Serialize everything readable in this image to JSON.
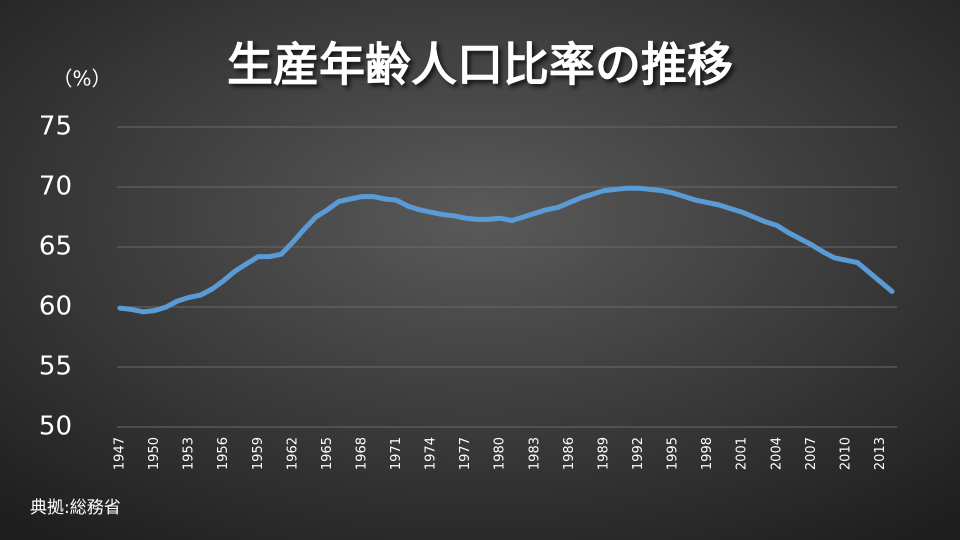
{
  "chart_data": {
    "type": "line",
    "title": "生産年齢人口比率の推移",
    "y_label": "（%）",
    "source": "典拠:総務省",
    "x": [
      1947,
      1948,
      1949,
      1950,
      1951,
      1952,
      1953,
      1954,
      1955,
      1956,
      1957,
      1958,
      1959,
      1960,
      1961,
      1962,
      1963,
      1964,
      1965,
      1966,
      1967,
      1968,
      1969,
      1970,
      1971,
      1972,
      1973,
      1974,
      1975,
      1976,
      1977,
      1978,
      1979,
      1980,
      1981,
      1982,
      1983,
      1984,
      1985,
      1986,
      1987,
      1988,
      1989,
      1990,
      1991,
      1992,
      1993,
      1994,
      1995,
      1996,
      1997,
      1998,
      1999,
      2000,
      2001,
      2002,
      2003,
      2004,
      2005,
      2006,
      2007,
      2008,
      2009,
      2010,
      2011,
      2012,
      2013,
      2014
    ],
    "values": [
      59.9,
      59.8,
      59.6,
      59.7,
      60.0,
      60.5,
      60.8,
      61.0,
      61.5,
      62.2,
      63.0,
      63.6,
      64.2,
      64.2,
      64.4,
      65.4,
      66.5,
      67.5,
      68.1,
      68.8,
      69.0,
      69.2,
      69.2,
      69.0,
      68.9,
      68.4,
      68.1,
      67.9,
      67.7,
      67.6,
      67.4,
      67.3,
      67.3,
      67.4,
      67.2,
      67.5,
      67.8,
      68.1,
      68.3,
      68.7,
      69.1,
      69.4,
      69.7,
      69.8,
      69.9,
      69.9,
      69.8,
      69.7,
      69.5,
      69.2,
      68.9,
      68.7,
      68.5,
      68.2,
      67.9,
      67.5,
      67.1,
      66.8,
      66.2,
      65.7,
      65.2,
      64.6,
      64.1,
      63.9,
      63.7,
      62.9,
      62.1,
      61.3
    ],
    "color": "#5b9bd5",
    "xlim": [
      1947,
      2014
    ],
    "xticks": [
      1947,
      1950,
      1953,
      1956,
      1959,
      1962,
      1965,
      1968,
      1971,
      1974,
      1977,
      1980,
      1983,
      1986,
      1989,
      1992,
      1995,
      1998,
      2001,
      2004,
      2007,
      2010,
      2013
    ],
    "ylim": [
      50,
      75
    ],
    "yticks": [
      50,
      55,
      60,
      65,
      70,
      75
    ],
    "grid": true
  }
}
